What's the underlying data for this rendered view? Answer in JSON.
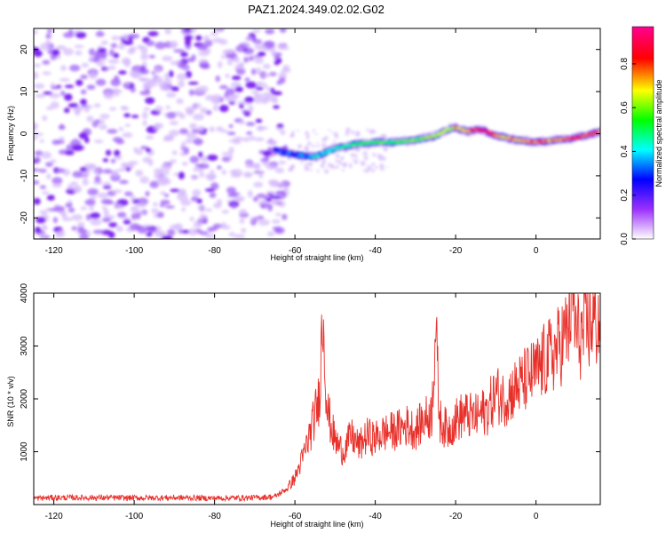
{
  "title": "PAZ1.2024.349.02.02.G02",
  "chart_data": [
    {
      "type": "heatmap",
      "xlabel": "Height of straight line (km)",
      "ylabel": "Frequency (Hz)",
      "xlim": [
        -125,
        16
      ],
      "ylim": [
        -25,
        25
      ],
      "xticks": [
        "-120",
        "-100",
        "-80",
        "-60",
        "-40",
        "-20",
        "0"
      ],
      "xtick_values": [
        -120,
        -100,
        -80,
        -60,
        -40,
        -20,
        0
      ],
      "yticks": [
        "20",
        "10",
        "0",
        "-10",
        "-20"
      ],
      "ytick_values": [
        20,
        10,
        0,
        -10,
        -20
      ],
      "colorbar": {
        "label": "Normalized spectral amplitude",
        "range": [
          0,
          0.97
        ],
        "ticks": [
          "0.0",
          "0.2",
          "0.4",
          "0.6",
          "0.8"
        ],
        "tick_values": [
          0.0,
          0.2,
          0.4,
          0.6,
          0.8
        ],
        "colors": [
          "#ffffff",
          "#8000ff",
          "#0000ff",
          "#00ffff",
          "#00ff00",
          "#ffff00",
          "#ff0000",
          "#ff00a0"
        ]
      },
      "noise_region_x": [
        -125,
        -62
      ],
      "ridge": {
        "x": [
          -65,
          -60,
          -55,
          -50,
          -45,
          -40,
          -35,
          -30,
          -25,
          -22,
          -20,
          -17,
          -15,
          -12,
          -10,
          -7,
          -5,
          0,
          5,
          10,
          16
        ],
        "frequency": [
          -4,
          -5,
          -5.5,
          -3.5,
          -2.5,
          -2,
          -2,
          -1.5,
          -0.5,
          1,
          1.5,
          0.5,
          1,
          0.5,
          -0.5,
          -1,
          -1.5,
          -2,
          -1.5,
          -1,
          0.5
        ],
        "amplitude": [
          0.25,
          0.3,
          0.4,
          0.45,
          0.5,
          0.55,
          0.55,
          0.6,
          0.65,
          0.6,
          0.7,
          0.75,
          0.85,
          0.9,
          0.75,
          0.7,
          0.75,
          0.8,
          0.75,
          0.85,
          0.8
        ]
      }
    },
    {
      "type": "line",
      "xlabel": "Height of straight line (km)",
      "ylabel": "SNR (10 * v/v)",
      "xlim": [
        -125,
        16
      ],
      "ylim": [
        0,
        4000
      ],
      "xticks": [
        "-120",
        "-100",
        "-80",
        "-60",
        "-40",
        "-20",
        "0"
      ],
      "xtick_values": [
        -120,
        -100,
        -80,
        -60,
        -40,
        -20,
        0
      ],
      "yticks": [
        "4000",
        "3000",
        "2000",
        "1000"
      ],
      "ytick_values": [
        4000,
        3000,
        2000,
        1000
      ],
      "series": [
        {
          "color": "#e8302a",
          "x": [
            -125,
            -120,
            -110,
            -100,
            -90,
            -80,
            -70,
            -65,
            -62,
            -60,
            -58,
            -56,
            -54,
            -53,
            -52,
            -50,
            -48,
            -46,
            -44,
            -42,
            -40,
            -38,
            -35,
            -32,
            -30,
            -28,
            -26,
            -25,
            -24,
            -22,
            -20,
            -18,
            -15,
            -12,
            -10,
            -8,
            -5,
            -2,
            0,
            2,
            5,
            8,
            9,
            10,
            12,
            14,
            16
          ],
          "y": [
            120,
            130,
            130,
            125,
            130,
            120,
            130,
            150,
            300,
            500,
            900,
            1400,
            2000,
            3700,
            1800,
            1200,
            1000,
            1300,
            1100,
            1300,
            1250,
            1350,
            1400,
            1500,
            1400,
            1600,
            1700,
            3400,
            1600,
            1400,
            1600,
            1700,
            1650,
            1800,
            2100,
            2000,
            2200,
            2400,
            2500,
            2700,
            2900,
            3300,
            4000,
            3200,
            3200,
            3500,
            3400
          ]
        }
      ]
    }
  ]
}
